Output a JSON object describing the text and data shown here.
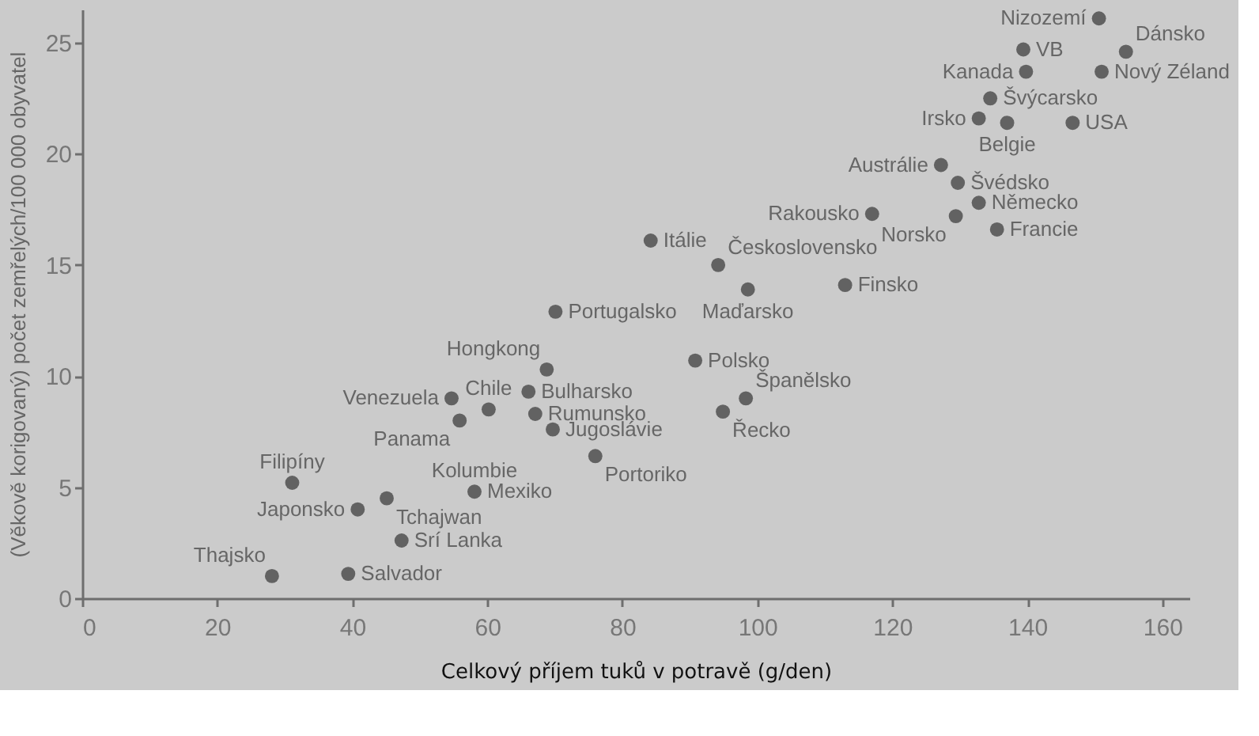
{
  "chart_data": {
    "type": "scatter",
    "xlabel": "Celkový příjem tuků v potravě (g/den)",
    "ylabel": "(Věkově korigovaný) počet zemřelých/100 000 obyvatel",
    "xlim": [
      0,
      164
    ],
    "ylim": [
      0,
      26.5
    ],
    "xticks": [
      0,
      20,
      40,
      60,
      80,
      100,
      120,
      140,
      160
    ],
    "yticks": [
      0,
      5,
      10,
      15,
      20,
      25
    ],
    "grid": false,
    "marker": "circle",
    "series": [
      {
        "color": "#626262",
        "x": [
          28.1,
          39.4,
          31.1,
          40.8,
          45.1,
          47.3,
          58.1,
          54.7,
          55.9,
          60.2,
          68.8,
          66.1,
          67.1,
          69.7,
          76.0,
          70.1,
          90.8,
          98.3,
          94.9,
          84.2,
          94.2,
          98.6,
          113.0,
          117.0,
          129.4,
          135.5,
          132.8,
          129.7,
          127.2,
          137.0,
          132.8,
          146.7,
          134.5,
          139.8,
          151.0,
          139.4,
          154.6,
          150.6
        ],
        "values": [
          1.0,
          1.1,
          5.2,
          4.0,
          4.5,
          2.6,
          4.8,
          9.0,
          8.0,
          8.5,
          10.3,
          9.3,
          8.3,
          7.6,
          6.4,
          12.9,
          10.7,
          9.0,
          8.4,
          16.1,
          15.0,
          13.9,
          14.1,
          17.3,
          17.2,
          16.6,
          17.8,
          18.7,
          19.5,
          21.4,
          21.6,
          21.4,
          22.5,
          23.7,
          23.7,
          24.7,
          24.6,
          26.1
        ]
      }
    ],
    "annotations": [
      {
        "text": "Thajsko",
        "x": 28.1,
        "y": 1.0
      },
      {
        "text": "Salvador",
        "x": 39.4,
        "y": 1.1
      },
      {
        "text": "Filipíny",
        "x": 31.1,
        "y": 5.2
      },
      {
        "text": "Japonsko",
        "x": 40.8,
        "y": 4.0
      },
      {
        "text": "Tchajwan",
        "x": 45.1,
        "y": 4.5
      },
      {
        "text": "Srí Lanka",
        "x": 47.3,
        "y": 2.6
      },
      {
        "text": "Kolumbie",
        "x": 58.1,
        "y": 4.8
      },
      {
        "text": "Mexiko",
        "x": 58.1,
        "y": 4.8
      },
      {
        "text": "Venezuela",
        "x": 54.7,
        "y": 9.0
      },
      {
        "text": "Panama",
        "x": 55.9,
        "y": 8.0
      },
      {
        "text": "Chile",
        "x": 60.2,
        "y": 8.5
      },
      {
        "text": "Hongkong",
        "x": 68.8,
        "y": 10.3
      },
      {
        "text": "Bulharsko",
        "x": 66.1,
        "y": 9.3
      },
      {
        "text": "Rumunsko",
        "x": 67.1,
        "y": 8.3
      },
      {
        "text": "Jugoslávie",
        "x": 69.7,
        "y": 7.6
      },
      {
        "text": "Portoriko",
        "x": 76.0,
        "y": 6.4
      },
      {
        "text": "Portugalsko",
        "x": 70.1,
        "y": 12.9
      },
      {
        "text": "Polsko",
        "x": 90.8,
        "y": 10.7
      },
      {
        "text": "Španělsko",
        "x": 98.3,
        "y": 9.0
      },
      {
        "text": "Řecko",
        "x": 94.9,
        "y": 8.4
      },
      {
        "text": "Itálie",
        "x": 84.2,
        "y": 16.1
      },
      {
        "text": "Československo",
        "x": 94.2,
        "y": 15.0
      },
      {
        "text": "Maďarsko",
        "x": 98.6,
        "y": 13.9
      },
      {
        "text": "Finsko",
        "x": 113.0,
        "y": 14.1
      },
      {
        "text": "Rakousko",
        "x": 117.0,
        "y": 17.3
      },
      {
        "text": "Norsko",
        "x": 129.4,
        "y": 17.2
      },
      {
        "text": "Francie",
        "x": 135.5,
        "y": 16.6
      },
      {
        "text": "Německo",
        "x": 132.8,
        "y": 17.8
      },
      {
        "text": "Švédsko",
        "x": 129.7,
        "y": 18.7
      },
      {
        "text": "Austrálie",
        "x": 127.2,
        "y": 19.5
      },
      {
        "text": "Belgie",
        "x": 137.0,
        "y": 21.4
      },
      {
        "text": "Irsko",
        "x": 132.8,
        "y": 21.6
      },
      {
        "text": "USA",
        "x": 146.7,
        "y": 21.4
      },
      {
        "text": "Švýcarsko",
        "x": 134.5,
        "y": 22.5
      },
      {
        "text": "Kanada",
        "x": 139.8,
        "y": 23.7
      },
      {
        "text": "Nový Zéland",
        "x": 151.0,
        "y": 23.7
      },
      {
        "text": "VB",
        "x": 139.4,
        "y": 24.7
      },
      {
        "text": "Dánsko",
        "x": 154.6,
        "y": 24.6
      },
      {
        "text": "Nizozemí",
        "x": 150.6,
        "y": 26.1
      }
    ]
  }
}
